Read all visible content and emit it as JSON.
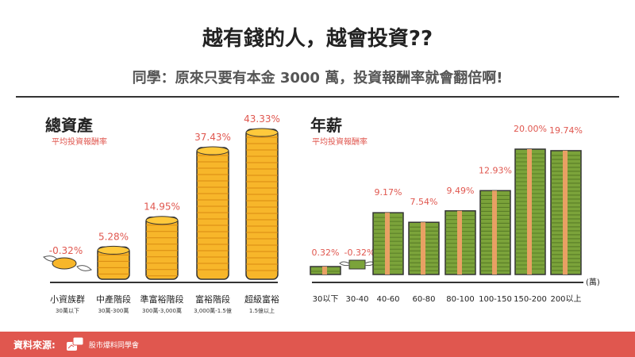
{
  "header": {
    "title": "越有錢的人，越會投資??",
    "subtitle": "同學：原來只要有本金 3000 萬，投資報酬率就會翻倍啊!"
  },
  "colors": {
    "accent": "#e0574f",
    "coin": "#f7b62a",
    "cash": "#7ba33a",
    "band": "#e8a064"
  },
  "chart_data": [
    {
      "type": "bar",
      "title": "總資產",
      "subtitle": "平均投資報酬率",
      "icon": "coin-stack",
      "categories": [
        "小資族群",
        "中產階段",
        "準富裕階段",
        "富裕階段",
        "超級富裕"
      ],
      "sublabels": [
        "30萬以下",
        "30萬-300萬",
        "300萬-3,000萬",
        "3,000萬-1.5億",
        "1.5億以上"
      ],
      "values": [
        -0.32,
        5.28,
        14.95,
        37.43,
        43.33
      ],
      "labels": [
        "-0.32%",
        "5.28%",
        "14.95%",
        "37.43%",
        "43.33%"
      ]
    },
    {
      "type": "bar",
      "title": "年薪",
      "subtitle": "平均投資報酬率",
      "icon": "cash-stack",
      "unit": "(萬)",
      "categories": [
        "30以下",
        "30-40",
        "40-60",
        "60-80",
        "80-100",
        "100-150",
        "150-200",
        "200以上"
      ],
      "values": [
        0.32,
        -0.32,
        9.17,
        7.54,
        9.49,
        12.93,
        20.0,
        19.74
      ],
      "labels": [
        "0.32%",
        "-0.32%",
        "9.17%",
        "7.54%",
        "9.49%",
        "12.93%",
        "20.00%",
        "19.74%"
      ]
    }
  ],
  "footer": {
    "source_label": "資料來源:",
    "source_name": "股市爆料同學會"
  }
}
